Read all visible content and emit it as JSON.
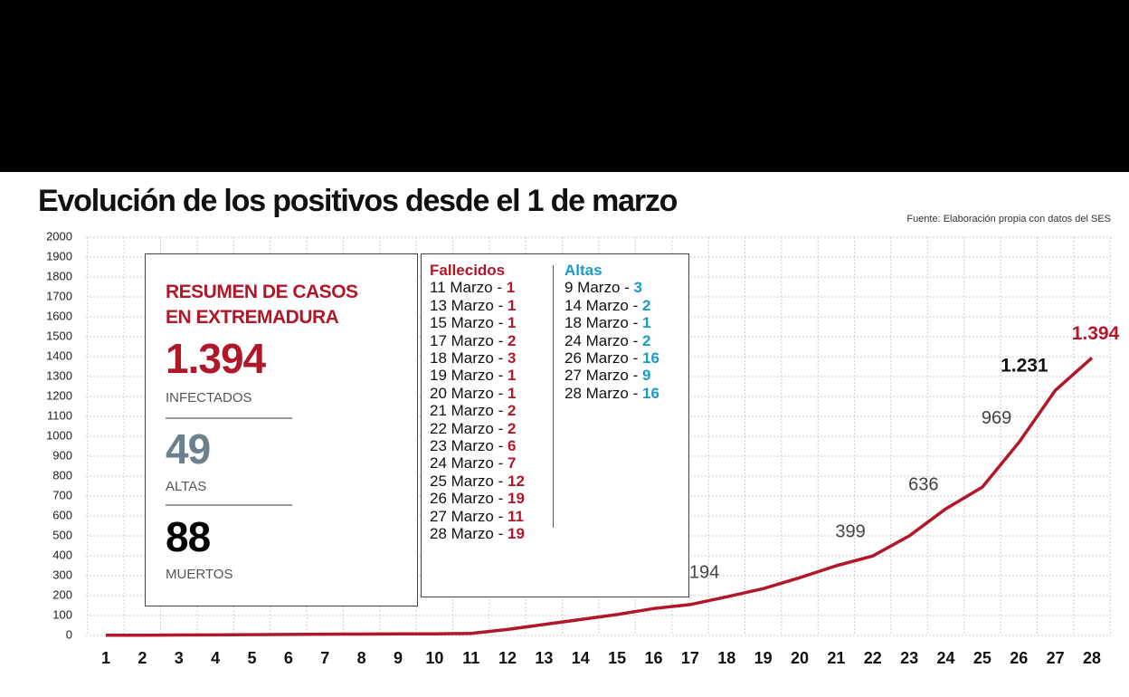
{
  "chart_data": {
    "type": "line",
    "title": "Evolución de los positivos desde el 1 de marzo",
    "source": "Fuente: Elaboración propia con datos del SES",
    "x": [
      1,
      2,
      3,
      4,
      5,
      6,
      7,
      8,
      9,
      10,
      11,
      12,
      13,
      14,
      15,
      16,
      17,
      18,
      19,
      20,
      21,
      22,
      23,
      24,
      25,
      26,
      27,
      28
    ],
    "xlim": [
      1,
      28
    ],
    "xticks": [
      1,
      2,
      3,
      4,
      5,
      6,
      7,
      8,
      9,
      10,
      11,
      12,
      13,
      14,
      15,
      16,
      17,
      18,
      19,
      20,
      21,
      22,
      23,
      24,
      25,
      26,
      27,
      28
    ],
    "ylim": [
      0,
      2000
    ],
    "yticks": [
      0,
      100,
      200,
      300,
      400,
      500,
      600,
      700,
      800,
      900,
      1000,
      1100,
      1200,
      1300,
      1400,
      1500,
      1600,
      1700,
      1800,
      1900,
      2000
    ],
    "grid": true,
    "color": "#b0182a",
    "values": [
      1,
      1,
      2,
      3,
      4,
      5,
      6,
      7,
      8,
      8,
      10,
      30,
      55,
      80,
      105,
      135,
      155,
      194,
      235,
      290,
      350,
      399,
      500,
      636,
      745,
      969,
      1231,
      1394
    ],
    "value_labels": [
      null,
      null,
      null,
      null,
      null,
      null,
      null,
      null,
      null,
      null,
      null,
      null,
      null,
      null,
      null,
      null,
      null,
      "194",
      null,
      null,
      null,
      "399",
      null,
      "636",
      null,
      "969",
      "1.231",
      "1.394"
    ]
  },
  "summary": {
    "heading": [
      "RESUMEN DE CASOS",
      "EN EXTREMADURA"
    ],
    "items": [
      {
        "value": "1.394",
        "label": "INFECTADOS"
      },
      {
        "value": "49",
        "label": "ALTAS"
      },
      {
        "value": "88",
        "label": "MUERTOS"
      }
    ]
  },
  "fallecidos": {
    "title": "Fallecidos",
    "items": [
      {
        "date": "11 Marzo -",
        "value": 1
      },
      {
        "date": "13 Marzo -",
        "value": 1
      },
      {
        "date": "15 Marzo -",
        "value": 1
      },
      {
        "date": "17 Marzo -",
        "value": 2
      },
      {
        "date": "18 Marzo -",
        "value": 3
      },
      {
        "date": "19 Marzo -",
        "value": 1
      },
      {
        "date": "20 Marzo -",
        "value": 1
      },
      {
        "date": "21 Marzo -",
        "value": 2
      },
      {
        "date": "22 Marzo -",
        "value": 2
      },
      {
        "date": "23 Marzo -",
        "value": 6
      },
      {
        "date": "24 Marzo -",
        "value": 7
      },
      {
        "date": "25 Marzo -",
        "value": 12
      },
      {
        "date": "26 Marzo -",
        "value": 19
      },
      {
        "date": "27 Marzo -",
        "value": 11
      },
      {
        "date": "28 Marzo -",
        "value": 19
      }
    ]
  },
  "altas": {
    "title": "Altas",
    "items": [
      {
        "date": "9 Marzo -",
        "value": 3
      },
      {
        "date": "14 Marzo -",
        "value": 2
      },
      {
        "date": "18 Marzo -",
        "value": 1
      },
      {
        "date": "24 Marzo -",
        "value": 2
      },
      {
        "date": "26 Marzo -",
        "value": 16
      },
      {
        "date": "27 Marzo -",
        "value": 9
      },
      {
        "date": "28 Marzo -",
        "value": 16
      }
    ]
  }
}
